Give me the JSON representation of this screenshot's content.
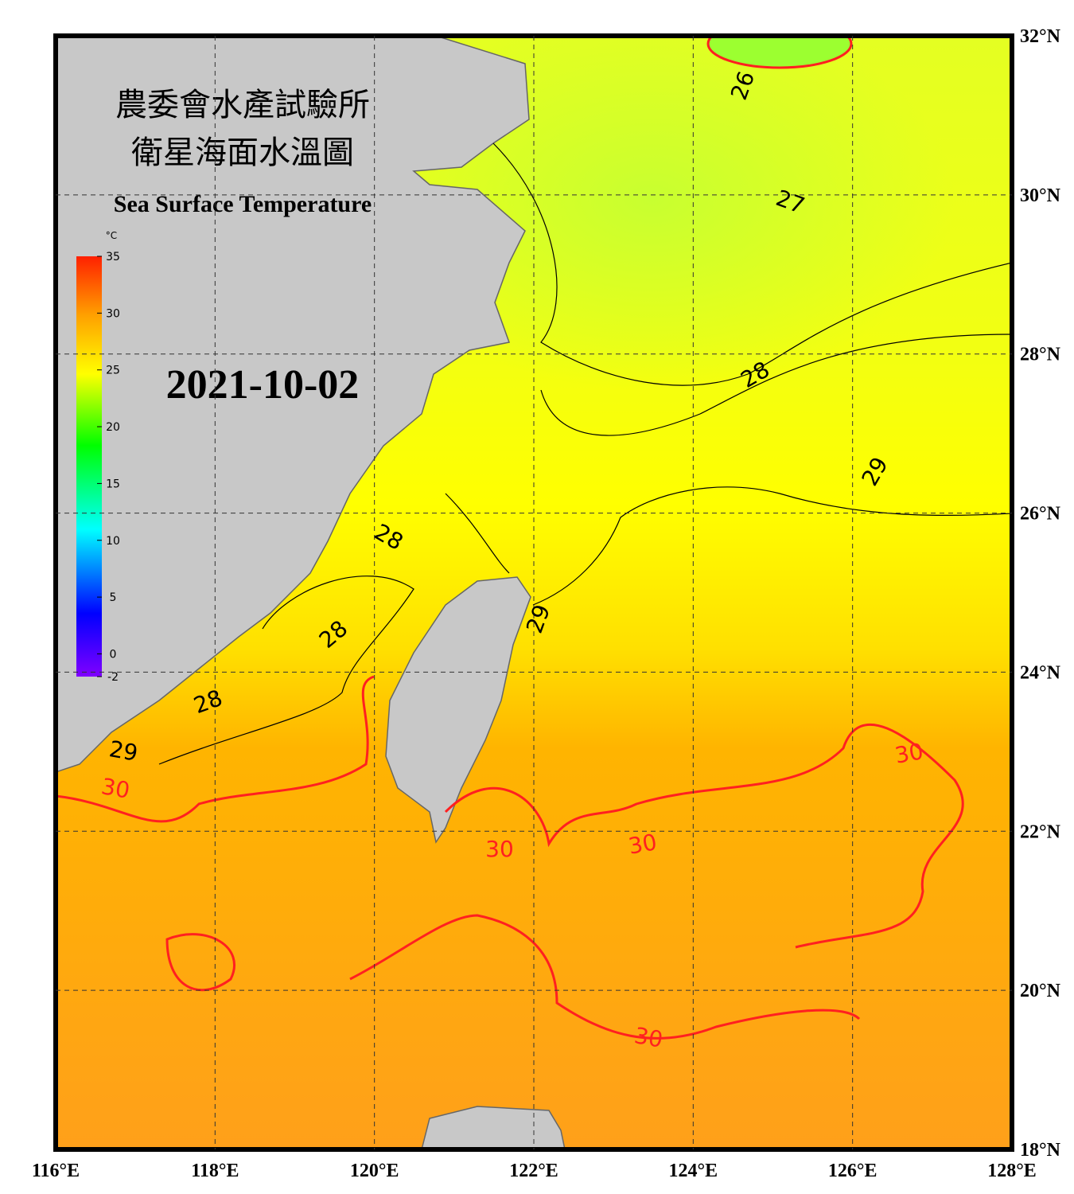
{
  "title": {
    "line1": "農委會水產試驗所",
    "line2": "衛星海面水溫圖",
    "english": "Sea Surface Temperature"
  },
  "date": "2021-10-02",
  "colorbar": {
    "unit": "°C",
    "range": [
      -2,
      35
    ],
    "ticks": [
      35,
      30,
      25,
      20,
      15,
      10,
      5,
      0,
      -2
    ]
  },
  "lon_ticks": [
    {
      "value": 116,
      "label": "116°E"
    },
    {
      "value": 118,
      "label": "118°E"
    },
    {
      "value": 120,
      "label": "120°E"
    },
    {
      "value": 122,
      "label": "122°E"
    },
    {
      "value": 124,
      "label": "124°E"
    },
    {
      "value": 126,
      "label": "126°E"
    },
    {
      "value": 128,
      "label": "128°E"
    }
  ],
  "lat_ticks": [
    {
      "value": 32,
      "label": "32°N"
    },
    {
      "value": 30,
      "label": "30°N"
    },
    {
      "value": 28,
      "label": "28°N"
    },
    {
      "value": 26,
      "label": "26°N"
    },
    {
      "value": 24,
      "label": "24°N"
    },
    {
      "value": 22,
      "label": "22°N"
    },
    {
      "value": 20,
      "label": "20°N"
    },
    {
      "value": 18,
      "label": "18°N"
    }
  ],
  "contour_labels": [
    26,
    27,
    28,
    28,
    28,
    28,
    29,
    29,
    29,
    30,
    30,
    30,
    30,
    30
  ]
}
